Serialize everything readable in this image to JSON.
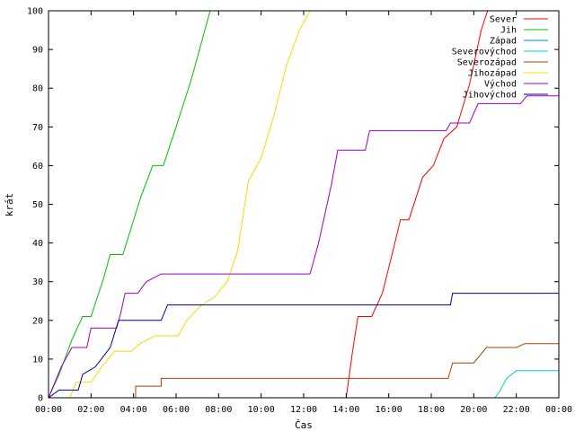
{
  "chart_data": {
    "type": "line",
    "title": "",
    "xlabel": "Čas",
    "ylabel": "krát",
    "xlim": [
      0,
      24
    ],
    "ylim": [
      0,
      100
    ],
    "grid": false,
    "legend_position": "top-right",
    "x_ticks": [
      {
        "value": 0,
        "label": "00:00"
      },
      {
        "value": 2,
        "label": "02:00"
      },
      {
        "value": 4,
        "label": "04:00"
      },
      {
        "value": 6,
        "label": "06:00"
      },
      {
        "value": 8,
        "label": "08:00"
      },
      {
        "value": 10,
        "label": "10:00"
      },
      {
        "value": 12,
        "label": "12:00"
      },
      {
        "value": 14,
        "label": "14:00"
      },
      {
        "value": 16,
        "label": "16:00"
      },
      {
        "value": 18,
        "label": "18:00"
      },
      {
        "value": 20,
        "label": "20:00"
      },
      {
        "value": 22,
        "label": "22:00"
      },
      {
        "value": 24,
        "label": "00:00"
      }
    ],
    "y_ticks": [
      0,
      10,
      20,
      30,
      40,
      50,
      60,
      70,
      80,
      90,
      100
    ],
    "series": [
      {
        "name": "Sever",
        "color": "#ff0000",
        "points": [
          [
            14.0,
            0
          ],
          [
            14.3,
            12
          ],
          [
            14.55,
            21
          ],
          [
            15.2,
            21
          ],
          [
            15.7,
            27
          ],
          [
            16.2,
            38
          ],
          [
            16.55,
            46
          ],
          [
            16.95,
            46
          ],
          [
            17.6,
            57
          ],
          [
            18.1,
            60
          ],
          [
            18.6,
            67
          ],
          [
            19.2,
            70
          ],
          [
            19.8,
            81
          ],
          [
            20.35,
            95
          ],
          [
            20.65,
            100
          ]
        ]
      },
      {
        "name": "Jih",
        "color": "#00c000",
        "points": [
          [
            0.0,
            0
          ],
          [
            0.5,
            6
          ],
          [
            1.1,
            15
          ],
          [
            1.6,
            21
          ],
          [
            2.0,
            21
          ],
          [
            2.6,
            31
          ],
          [
            2.9,
            37
          ],
          [
            3.5,
            37
          ],
          [
            3.95,
            45
          ],
          [
            4.35,
            52
          ],
          [
            4.9,
            60
          ],
          [
            5.4,
            60
          ],
          [
            6.0,
            70
          ],
          [
            6.7,
            82
          ],
          [
            7.3,
            94
          ],
          [
            7.6,
            100
          ]
        ]
      },
      {
        "name": "Západ",
        "color": "#0080ff",
        "points": []
      },
      {
        "name": "Severovýchod",
        "color": "#00d0d0",
        "points": [
          [
            21.0,
            0
          ],
          [
            21.25,
            2
          ],
          [
            21.55,
            5
          ],
          [
            22.0,
            7
          ],
          [
            24.0,
            7
          ]
        ]
      },
      {
        "name": "Severozápad",
        "color": "#b04000",
        "points": [
          [
            0.0,
            0
          ],
          [
            4.1,
            0
          ],
          [
            4.1,
            3
          ],
          [
            5.3,
            3
          ],
          [
            5.3,
            5
          ],
          [
            18.8,
            5
          ],
          [
            19.0,
            9
          ],
          [
            20.0,
            9
          ],
          [
            20.3,
            11
          ],
          [
            20.6,
            13
          ],
          [
            22.0,
            13
          ],
          [
            22.4,
            14
          ],
          [
            24.0,
            14
          ]
        ]
      },
      {
        "name": "Jihozápad",
        "color": "#ffd700",
        "points": [
          [
            0.0,
            0
          ],
          [
            1.0,
            0
          ],
          [
            1.3,
            4
          ],
          [
            2.0,
            4
          ],
          [
            2.5,
            8
          ],
          [
            3.1,
            12
          ],
          [
            3.9,
            12
          ],
          [
            4.3,
            14
          ],
          [
            5.0,
            16
          ],
          [
            6.1,
            16
          ],
          [
            6.5,
            20
          ],
          [
            7.2,
            24
          ],
          [
            7.8,
            26
          ],
          [
            8.4,
            30
          ],
          [
            8.9,
            38
          ],
          [
            9.4,
            56
          ],
          [
            10.0,
            62
          ],
          [
            10.6,
            73
          ],
          [
            11.2,
            86
          ],
          [
            11.8,
            95
          ],
          [
            12.3,
            100
          ]
        ]
      },
      {
        "name": "Východ",
        "color": "#a000c0",
        "points": [
          [
            0.0,
            0
          ],
          [
            0.6,
            8
          ],
          [
            1.1,
            13
          ],
          [
            1.8,
            13
          ],
          [
            2.0,
            18
          ],
          [
            3.2,
            18
          ],
          [
            3.4,
            22
          ],
          [
            3.6,
            27
          ],
          [
            4.2,
            27
          ],
          [
            4.6,
            30
          ],
          [
            5.3,
            32
          ],
          [
            12.3,
            32
          ],
          [
            12.7,
            40
          ],
          [
            13.3,
            55
          ],
          [
            13.6,
            64
          ],
          [
            14.9,
            64
          ],
          [
            15.1,
            69
          ],
          [
            18.7,
            69
          ],
          [
            18.9,
            71
          ],
          [
            19.8,
            71
          ],
          [
            20.2,
            76
          ],
          [
            22.2,
            76
          ],
          [
            22.5,
            78
          ],
          [
            24.0,
            78
          ]
        ]
      },
      {
        "name": "Jihovýchod",
        "color": "#0000a0",
        "points": [
          [
            0.0,
            0
          ],
          [
            0.5,
            2
          ],
          [
            1.4,
            2
          ],
          [
            1.6,
            6
          ],
          [
            2.2,
            8
          ],
          [
            2.9,
            13
          ],
          [
            3.3,
            20
          ],
          [
            5.3,
            20
          ],
          [
            5.6,
            24
          ],
          [
            18.9,
            24
          ],
          [
            19.0,
            27
          ],
          [
            24.0,
            27
          ]
        ]
      }
    ]
  }
}
